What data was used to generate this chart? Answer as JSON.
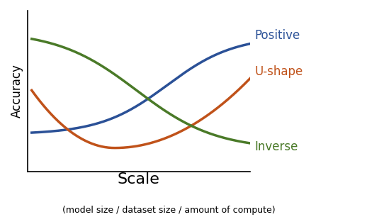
{
  "xlabel": "Scale",
  "xlabel_sub": "(model size / dataset size / amount of compute)",
  "ylabel": "Accuracy",
  "line_positive_color": "#2b5197",
  "line_ushape_color": "#c0521a",
  "line_inverse_color": "#4a7a28",
  "label_positive": "Positive",
  "label_ushape": "U-shape",
  "label_inverse": "Inverse",
  "line_width": 2.5,
  "background_color": "#ffffff",
  "annotation_fontsize": 12,
  "xlabel_fontsize": 16,
  "ylabel_fontsize": 12
}
